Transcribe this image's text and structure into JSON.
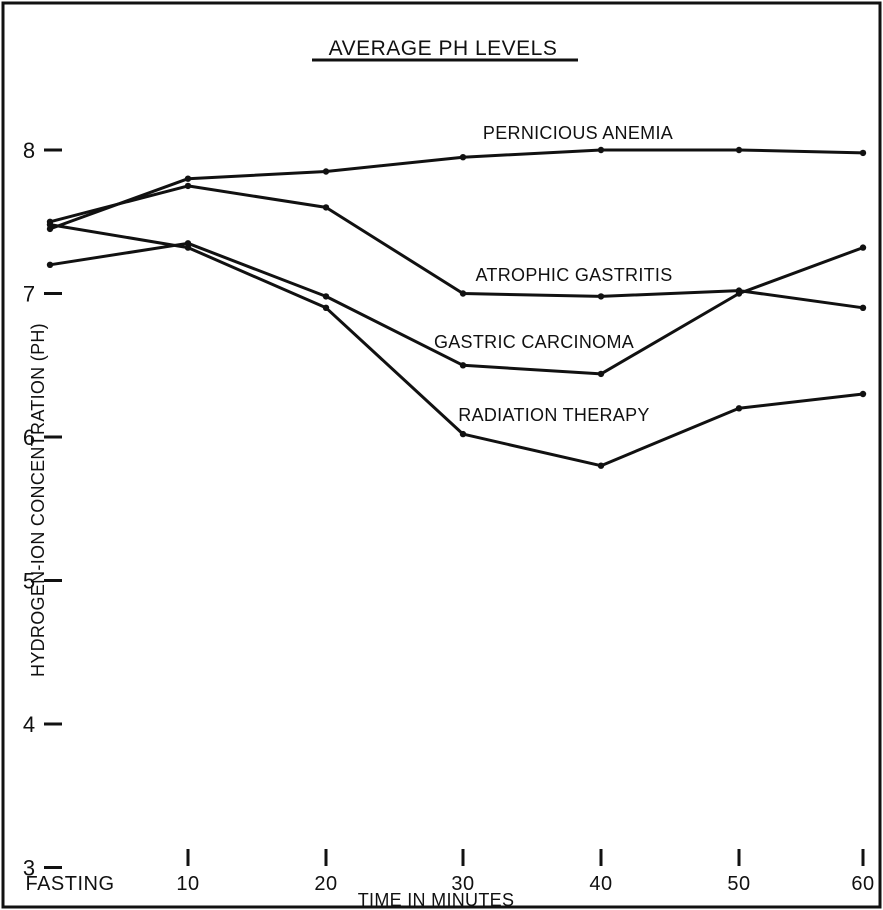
{
  "chart_data": {
    "type": "line",
    "title": "AVERAGE PH LEVELS",
    "xlabel": "TIME IN MINUTES",
    "ylabel": "HYDROGEN-ION CONCENTRATION (PH)",
    "x_categories": [
      "FASTING",
      "10",
      "20",
      "30",
      "40",
      "50",
      "60"
    ],
    "y_ticks": [
      "3",
      "4",
      "5",
      "6",
      "7",
      "8"
    ],
    "ylim": [
      3,
      8.4
    ],
    "grid": false,
    "legend": "none (series labelled directly on the lines)",
    "series": [
      {
        "name": "PERNICIOUS ANEMIA",
        "values": [
          7.45,
          7.8,
          7.85,
          7.95,
          8.0,
          8.0,
          7.98
        ]
      },
      {
        "name": "ATROPHIC GASTRITIS",
        "values": [
          7.5,
          7.75,
          7.6,
          7.0,
          6.98,
          7.02,
          6.9
        ]
      },
      {
        "name": "GASTRIC CARCINOMA",
        "values": [
          7.2,
          7.35,
          6.98,
          6.5,
          6.44,
          7.0,
          7.32
        ]
      },
      {
        "name": "RADIATION THERAPY",
        "values": [
          7.48,
          7.32,
          6.9,
          6.02,
          5.8,
          6.2,
          6.3
        ]
      }
    ]
  }
}
